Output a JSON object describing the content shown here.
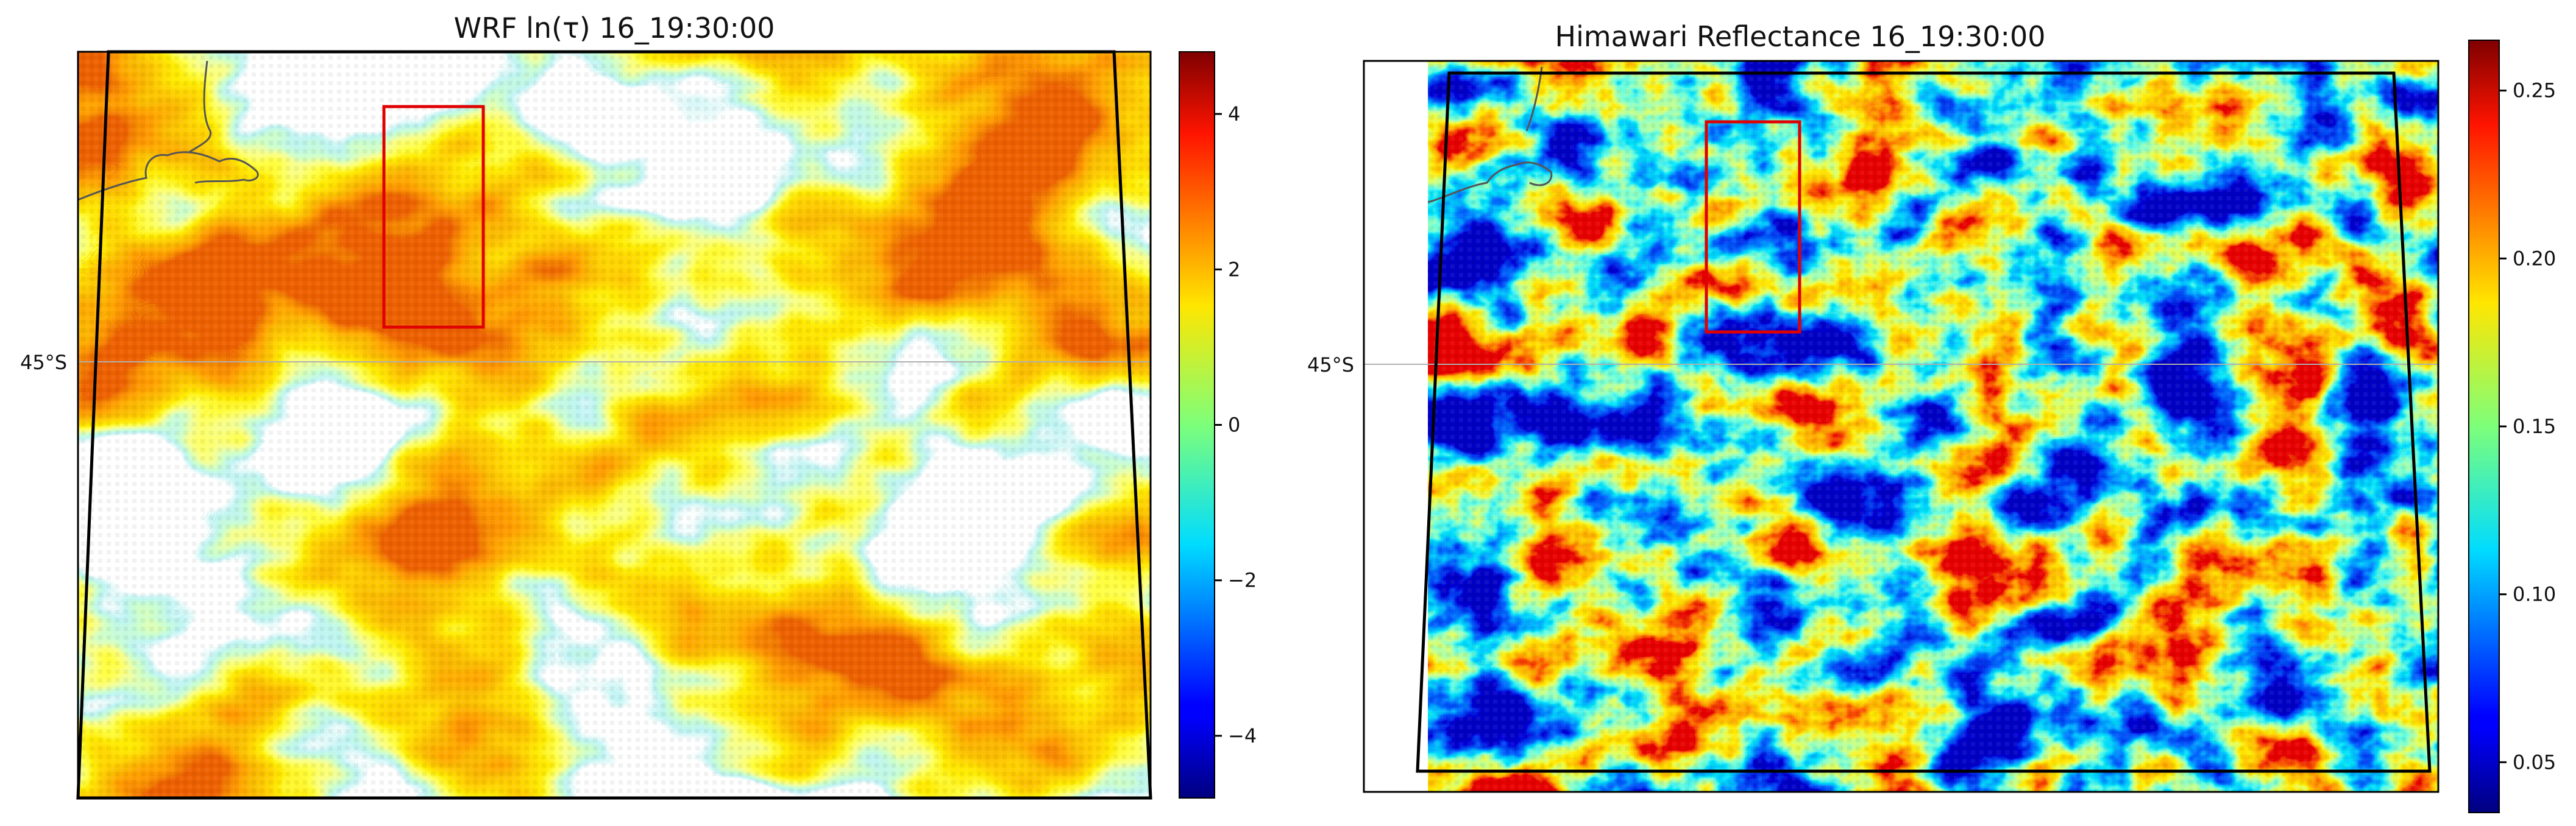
{
  "chart_data": [
    {
      "type": "heatmap",
      "title": "WRF ln(τ) 16_19:30:00",
      "colormap": "jet",
      "missing_color": "#ffffff",
      "colorbar": {
        "range": [
          -4.8,
          4.8
        ],
        "ticks": [
          -4,
          -2,
          0,
          2,
          4
        ],
        "tick_labels": [
          "−4",
          "−2",
          "0",
          "2",
          "4"
        ]
      },
      "y_tick_labels": [
        "45°S"
      ],
      "overlays": [
        "coastline",
        "latitude gridline at 45°S",
        "red box region",
        "black domain outline"
      ]
    },
    {
      "type": "heatmap",
      "title": "Himawari Reflectance 16_19:30:00",
      "colormap": "jet",
      "colorbar": {
        "range": [
          0.035,
          0.265
        ],
        "ticks": [
          0.05,
          0.1,
          0.15,
          0.2,
          0.25
        ],
        "tick_labels": [
          "0.05",
          "0.10",
          "0.15",
          "0.20",
          "0.25"
        ]
      },
      "y_tick_labels": [
        "45°S"
      ],
      "overlays": [
        "coastline",
        "latitude gridline at 45°S",
        "red box region",
        "black domain outline"
      ]
    }
  ]
}
